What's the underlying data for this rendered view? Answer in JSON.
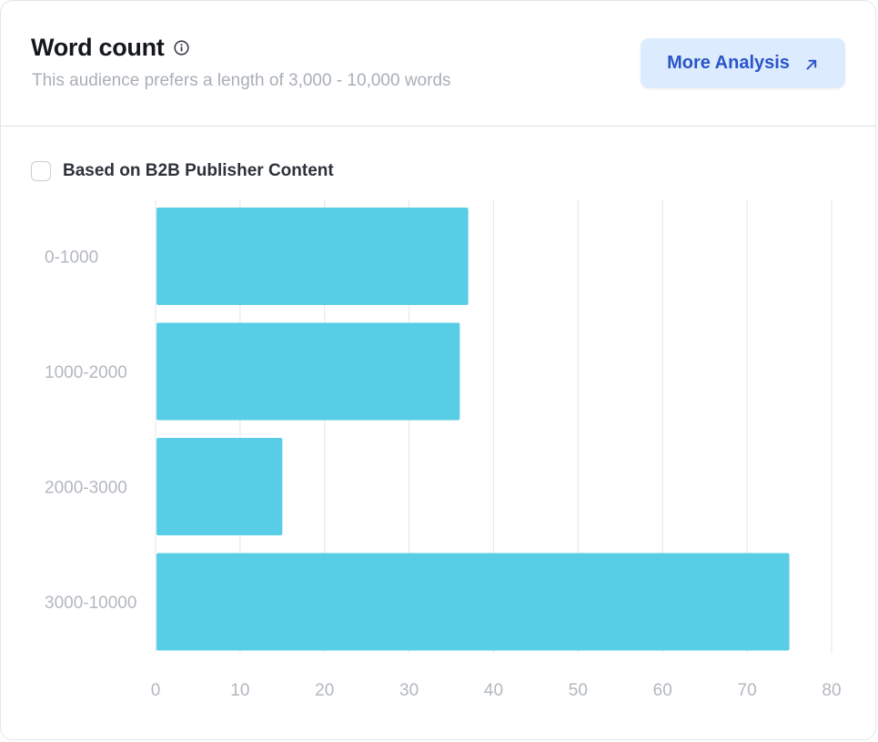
{
  "header": {
    "title": "Word count",
    "subtitle": "This audience prefers a length of 3,000 - 10,000 words",
    "info_icon": "info-icon",
    "more_button_label": "More Analysis",
    "more_button_icon": "arrow-up-right-icon"
  },
  "filter": {
    "checkbox_label": "Based on B2B Publisher Content",
    "checked": false
  },
  "colors": {
    "bar": "#58cde6",
    "button_bg": "#dcebfd",
    "button_text": "#2a55c9",
    "grid": "#e8eaed",
    "tick_text": "#b3b8be"
  },
  "chart_data": {
    "type": "bar",
    "orientation": "horizontal",
    "categories": [
      "0-1000",
      "1000-2000",
      "2000-3000",
      "3000-10000"
    ],
    "values": [
      37,
      36,
      15,
      75
    ],
    "xlim": [
      0,
      80
    ],
    "xticks": [
      0,
      10,
      20,
      30,
      40,
      50,
      60,
      70,
      80
    ],
    "grid": true,
    "title": "",
    "xlabel": "",
    "ylabel": ""
  }
}
